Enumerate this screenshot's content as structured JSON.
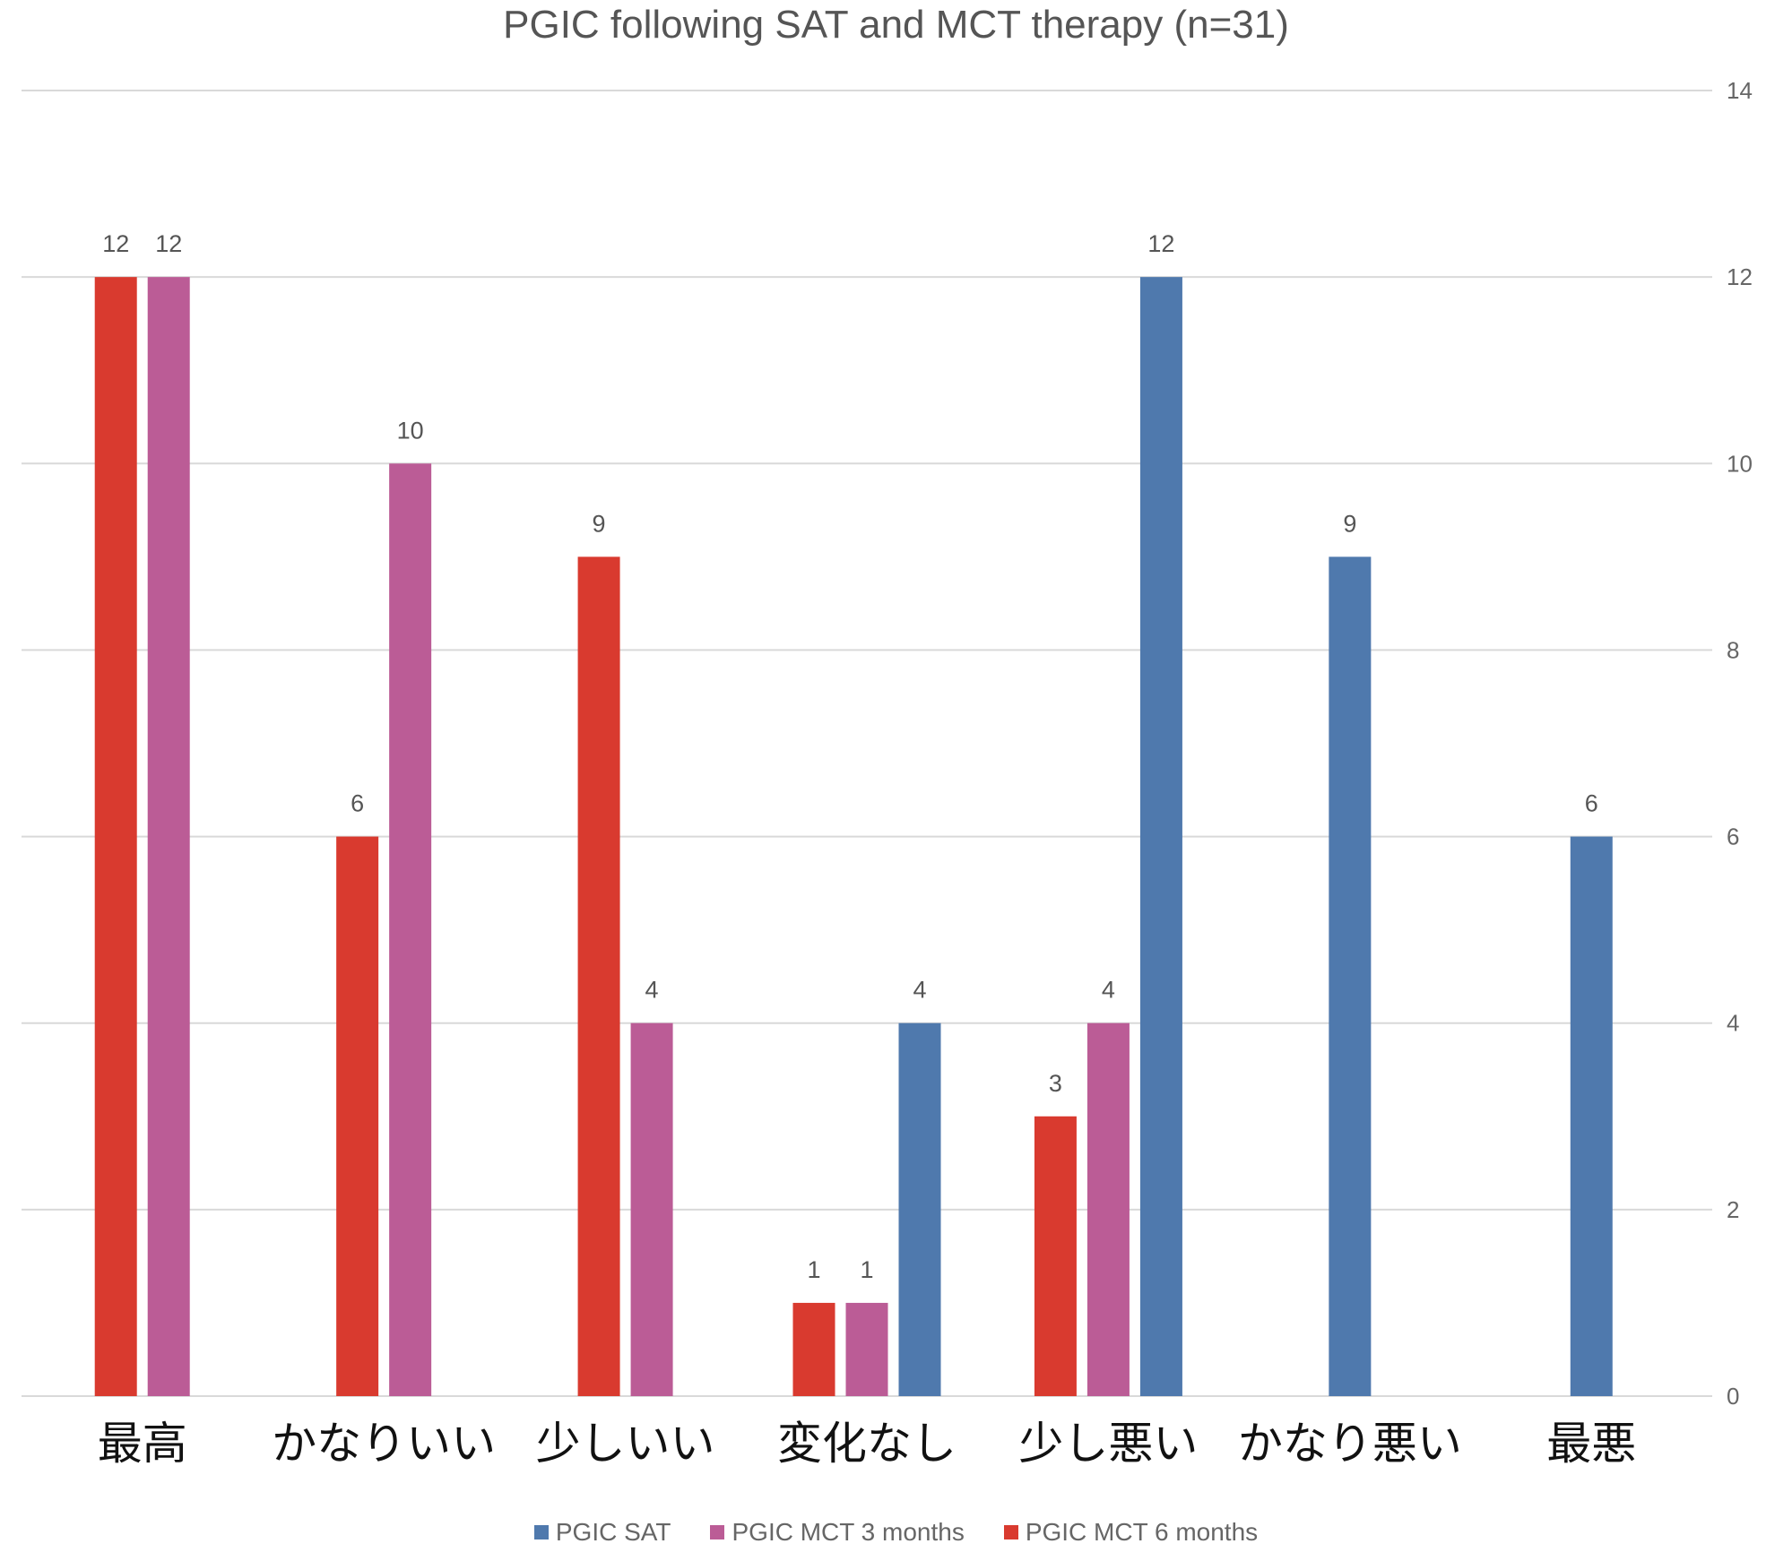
{
  "chart_data": {
    "type": "bar",
    "title": "PGIC  following SAT and MCT therapy (n=31)",
    "categories": [
      "最高",
      "かなりいい",
      "少しいい",
      "変化なし",
      "少し悪い",
      "かなり悪い",
      "最悪"
    ],
    "series": [
      {
        "name": "PGIC MCT 6 months",
        "color": "#d93a2f",
        "values": [
          12,
          6,
          9,
          1,
          3,
          null,
          null
        ]
      },
      {
        "name": "PGIC MCT 3 months",
        "color": "#bb5c96",
        "values": [
          12,
          10,
          4,
          1,
          4,
          null,
          null
        ]
      },
      {
        "name": "PGIC SAT",
        "color": "#4f79ad",
        "values": [
          null,
          null,
          null,
          4,
          12,
          9,
          6
        ]
      }
    ],
    "legend_order": [
      "PGIC SAT",
      "PGIC MCT 3 months",
      "PGIC MCT 6 months"
    ],
    "y_ticks": [
      0,
      2,
      4,
      6,
      8,
      10,
      12,
      14
    ],
    "ylim": [
      0,
      14
    ],
    "y_axis_position": "right",
    "grid": true,
    "legend_position": "bottom"
  }
}
